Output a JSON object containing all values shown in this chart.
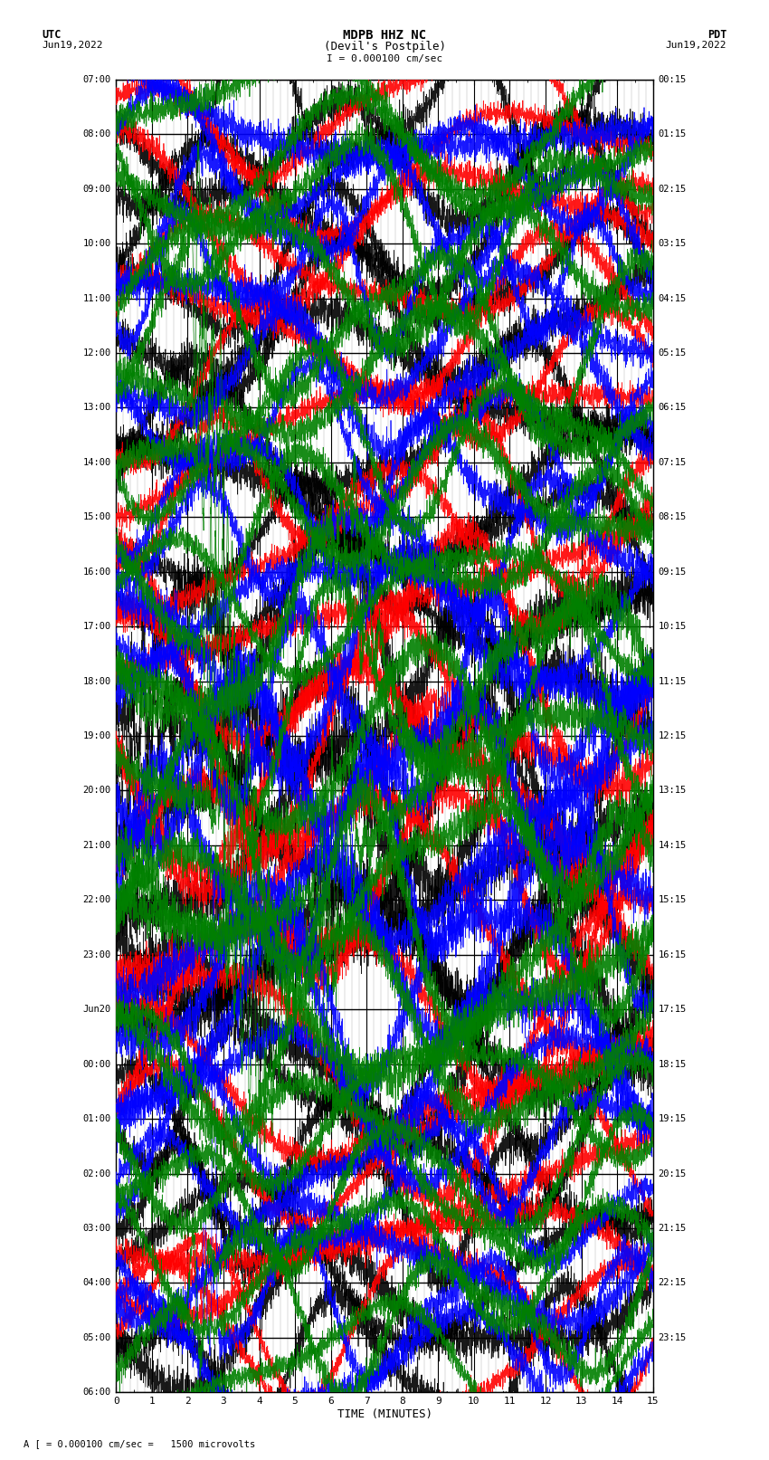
{
  "title_line1": "MDPB HHZ NC",
  "title_line2": "(Devil's Postpile)",
  "scale_label": "I = 0.000100 cm/sec",
  "left_label_top": "UTC",
  "left_label_date": "Jun19,2022",
  "right_label_top": "PDT",
  "right_label_date": "Jun19,2022",
  "bottom_label": "TIME (MINUTES)",
  "bottom_note": "A [ = 0.000100 cm/sec =   1500 microvolts",
  "left_times": [
    "07:00",
    "08:00",
    "09:00",
    "10:00",
    "11:00",
    "12:00",
    "13:00",
    "14:00",
    "15:00",
    "16:00",
    "17:00",
    "18:00",
    "19:00",
    "20:00",
    "21:00",
    "22:00",
    "23:00",
    "Jun20",
    "00:00",
    "01:00",
    "02:00",
    "03:00",
    "04:00",
    "05:00",
    "06:00"
  ],
  "right_times": [
    "00:15",
    "01:15",
    "02:15",
    "03:15",
    "04:15",
    "05:15",
    "06:15",
    "07:15",
    "08:15",
    "09:15",
    "10:15",
    "11:15",
    "12:15",
    "13:15",
    "14:15",
    "15:15",
    "16:15",
    "17:15",
    "18:15",
    "19:15",
    "20:15",
    "21:15",
    "22:15",
    "23:15"
  ],
  "n_rows": 24,
  "minutes_per_row": 15,
  "x_ticks": [
    0,
    1,
    2,
    3,
    4,
    5,
    6,
    7,
    8,
    9,
    10,
    11,
    12,
    13,
    14,
    15
  ],
  "colors": [
    "black",
    "red",
    "blue",
    "green"
  ],
  "bg_color": "#ffffff",
  "plot_bg": "#ffffff",
  "grid_color_major": "#000000",
  "grid_color_minor": "#aaaaaa"
}
